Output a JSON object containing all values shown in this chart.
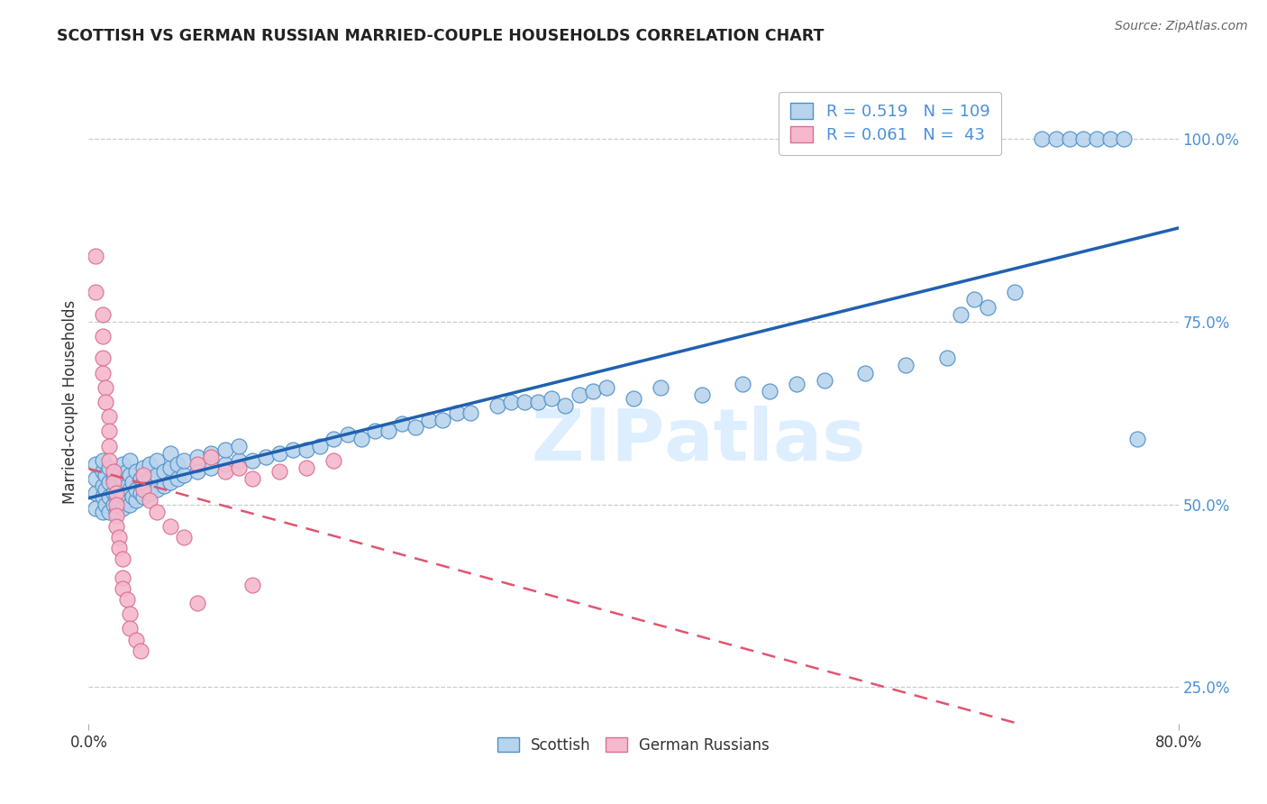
{
  "title": "SCOTTISH VS GERMAN RUSSIAN MARRIED-COUPLE HOUSEHOLDS CORRELATION CHART",
  "source_text": "Source: ZipAtlas.com",
  "ylabel": "Married-couple Households",
  "xlim": [
    0.0,
    0.8
  ],
  "ylim": [
    0.2,
    1.08
  ],
  "xtick_positions": [
    0.0,
    0.8
  ],
  "xtick_labels": [
    "0.0%",
    "80.0%"
  ],
  "ytick_values": [
    0.25,
    0.5,
    0.75,
    1.0
  ],
  "ytick_labels": [
    "25.0%",
    "50.0%",
    "75.0%",
    "100.0%"
  ],
  "title_color": "#222222",
  "source_color": "#666666",
  "grid_color": "#cccccc",
  "scottish_fill": "#b8d4ed",
  "scottish_edge": "#5090c8",
  "scottish_line": "#2060b0",
  "german_fill": "#f5b8cc",
  "german_edge": "#d87090",
  "german_line": "#e05570",
  "right_tick_color": "#4a90d9",
  "watermark_color": "#ddeeff",
  "scottish_points": [
    [
      0.005,
      0.495
    ],
    [
      0.005,
      0.515
    ],
    [
      0.005,
      0.535
    ],
    [
      0.005,
      0.555
    ],
    [
      0.01,
      0.49
    ],
    [
      0.01,
      0.51
    ],
    [
      0.01,
      0.525
    ],
    [
      0.01,
      0.545
    ],
    [
      0.01,
      0.56
    ],
    [
      0.012,
      0.5
    ],
    [
      0.012,
      0.52
    ],
    [
      0.012,
      0.54
    ],
    [
      0.015,
      0.49
    ],
    [
      0.015,
      0.51
    ],
    [
      0.015,
      0.53
    ],
    [
      0.015,
      0.55
    ],
    [
      0.018,
      0.5
    ],
    [
      0.018,
      0.515
    ],
    [
      0.018,
      0.535
    ],
    [
      0.02,
      0.49
    ],
    [
      0.02,
      0.51
    ],
    [
      0.02,
      0.528
    ],
    [
      0.02,
      0.545
    ],
    [
      0.022,
      0.5
    ],
    [
      0.022,
      0.52
    ],
    [
      0.022,
      0.54
    ],
    [
      0.025,
      0.495
    ],
    [
      0.025,
      0.515
    ],
    [
      0.025,
      0.535
    ],
    [
      0.025,
      0.555
    ],
    [
      0.028,
      0.505
    ],
    [
      0.028,
      0.525
    ],
    [
      0.028,
      0.545
    ],
    [
      0.03,
      0.5
    ],
    [
      0.03,
      0.52
    ],
    [
      0.03,
      0.54
    ],
    [
      0.03,
      0.56
    ],
    [
      0.032,
      0.51
    ],
    [
      0.032,
      0.53
    ],
    [
      0.035,
      0.505
    ],
    [
      0.035,
      0.52
    ],
    [
      0.035,
      0.545
    ],
    [
      0.038,
      0.515
    ],
    [
      0.038,
      0.535
    ],
    [
      0.04,
      0.51
    ],
    [
      0.04,
      0.53
    ],
    [
      0.04,
      0.55
    ],
    [
      0.045,
      0.515
    ],
    [
      0.045,
      0.535
    ],
    [
      0.045,
      0.555
    ],
    [
      0.05,
      0.52
    ],
    [
      0.05,
      0.54
    ],
    [
      0.05,
      0.56
    ],
    [
      0.055,
      0.525
    ],
    [
      0.055,
      0.545
    ],
    [
      0.06,
      0.53
    ],
    [
      0.06,
      0.55
    ],
    [
      0.06,
      0.57
    ],
    [
      0.065,
      0.535
    ],
    [
      0.065,
      0.555
    ],
    [
      0.07,
      0.54
    ],
    [
      0.07,
      0.56
    ],
    [
      0.08,
      0.545
    ],
    [
      0.08,
      0.565
    ],
    [
      0.09,
      0.55
    ],
    [
      0.09,
      0.57
    ],
    [
      0.1,
      0.555
    ],
    [
      0.1,
      0.575
    ],
    [
      0.11,
      0.56
    ],
    [
      0.11,
      0.58
    ],
    [
      0.12,
      0.56
    ],
    [
      0.13,
      0.565
    ],
    [
      0.14,
      0.57
    ],
    [
      0.15,
      0.575
    ],
    [
      0.16,
      0.575
    ],
    [
      0.17,
      0.58
    ],
    [
      0.18,
      0.59
    ],
    [
      0.19,
      0.595
    ],
    [
      0.2,
      0.59
    ],
    [
      0.21,
      0.6
    ],
    [
      0.22,
      0.6
    ],
    [
      0.23,
      0.61
    ],
    [
      0.24,
      0.605
    ],
    [
      0.25,
      0.615
    ],
    [
      0.26,
      0.615
    ],
    [
      0.27,
      0.625
    ],
    [
      0.28,
      0.625
    ],
    [
      0.3,
      0.635
    ],
    [
      0.31,
      0.64
    ],
    [
      0.32,
      0.64
    ],
    [
      0.33,
      0.64
    ],
    [
      0.34,
      0.645
    ],
    [
      0.35,
      0.635
    ],
    [
      0.36,
      0.65
    ],
    [
      0.37,
      0.655
    ],
    [
      0.38,
      0.66
    ],
    [
      0.4,
      0.645
    ],
    [
      0.42,
      0.66
    ],
    [
      0.45,
      0.65
    ],
    [
      0.48,
      0.665
    ],
    [
      0.5,
      0.655
    ],
    [
      0.52,
      0.665
    ],
    [
      0.54,
      0.67
    ],
    [
      0.57,
      0.68
    ],
    [
      0.6,
      0.69
    ],
    [
      0.63,
      0.7
    ],
    [
      0.64,
      0.76
    ],
    [
      0.65,
      0.78
    ],
    [
      0.66,
      0.77
    ],
    [
      0.68,
      0.79
    ],
    [
      0.7,
      1.0
    ],
    [
      0.71,
      1.0
    ],
    [
      0.72,
      1.0
    ],
    [
      0.73,
      1.0
    ],
    [
      0.74,
      1.0
    ],
    [
      0.75,
      1.0
    ],
    [
      0.76,
      1.0
    ],
    [
      0.77,
      0.59
    ]
  ],
  "german_points": [
    [
      0.005,
      0.84
    ],
    [
      0.005,
      0.79
    ],
    [
      0.01,
      0.76
    ],
    [
      0.01,
      0.73
    ],
    [
      0.01,
      0.7
    ],
    [
      0.01,
      0.68
    ],
    [
      0.012,
      0.66
    ],
    [
      0.012,
      0.64
    ],
    [
      0.015,
      0.62
    ],
    [
      0.015,
      0.6
    ],
    [
      0.015,
      0.58
    ],
    [
      0.015,
      0.56
    ],
    [
      0.018,
      0.545
    ],
    [
      0.018,
      0.53
    ],
    [
      0.02,
      0.515
    ],
    [
      0.02,
      0.5
    ],
    [
      0.02,
      0.485
    ],
    [
      0.02,
      0.47
    ],
    [
      0.022,
      0.455
    ],
    [
      0.022,
      0.44
    ],
    [
      0.025,
      0.425
    ],
    [
      0.025,
      0.4
    ],
    [
      0.025,
      0.385
    ],
    [
      0.028,
      0.37
    ],
    [
      0.03,
      0.35
    ],
    [
      0.03,
      0.33
    ],
    [
      0.035,
      0.315
    ],
    [
      0.038,
      0.3
    ],
    [
      0.04,
      0.54
    ],
    [
      0.04,
      0.52
    ],
    [
      0.045,
      0.505
    ],
    [
      0.05,
      0.49
    ],
    [
      0.06,
      0.47
    ],
    [
      0.07,
      0.455
    ],
    [
      0.08,
      0.555
    ],
    [
      0.09,
      0.565
    ],
    [
      0.1,
      0.545
    ],
    [
      0.11,
      0.55
    ],
    [
      0.12,
      0.535
    ],
    [
      0.14,
      0.545
    ],
    [
      0.16,
      0.55
    ],
    [
      0.18,
      0.56
    ],
    [
      0.08,
      0.365
    ],
    [
      0.12,
      0.39
    ]
  ]
}
